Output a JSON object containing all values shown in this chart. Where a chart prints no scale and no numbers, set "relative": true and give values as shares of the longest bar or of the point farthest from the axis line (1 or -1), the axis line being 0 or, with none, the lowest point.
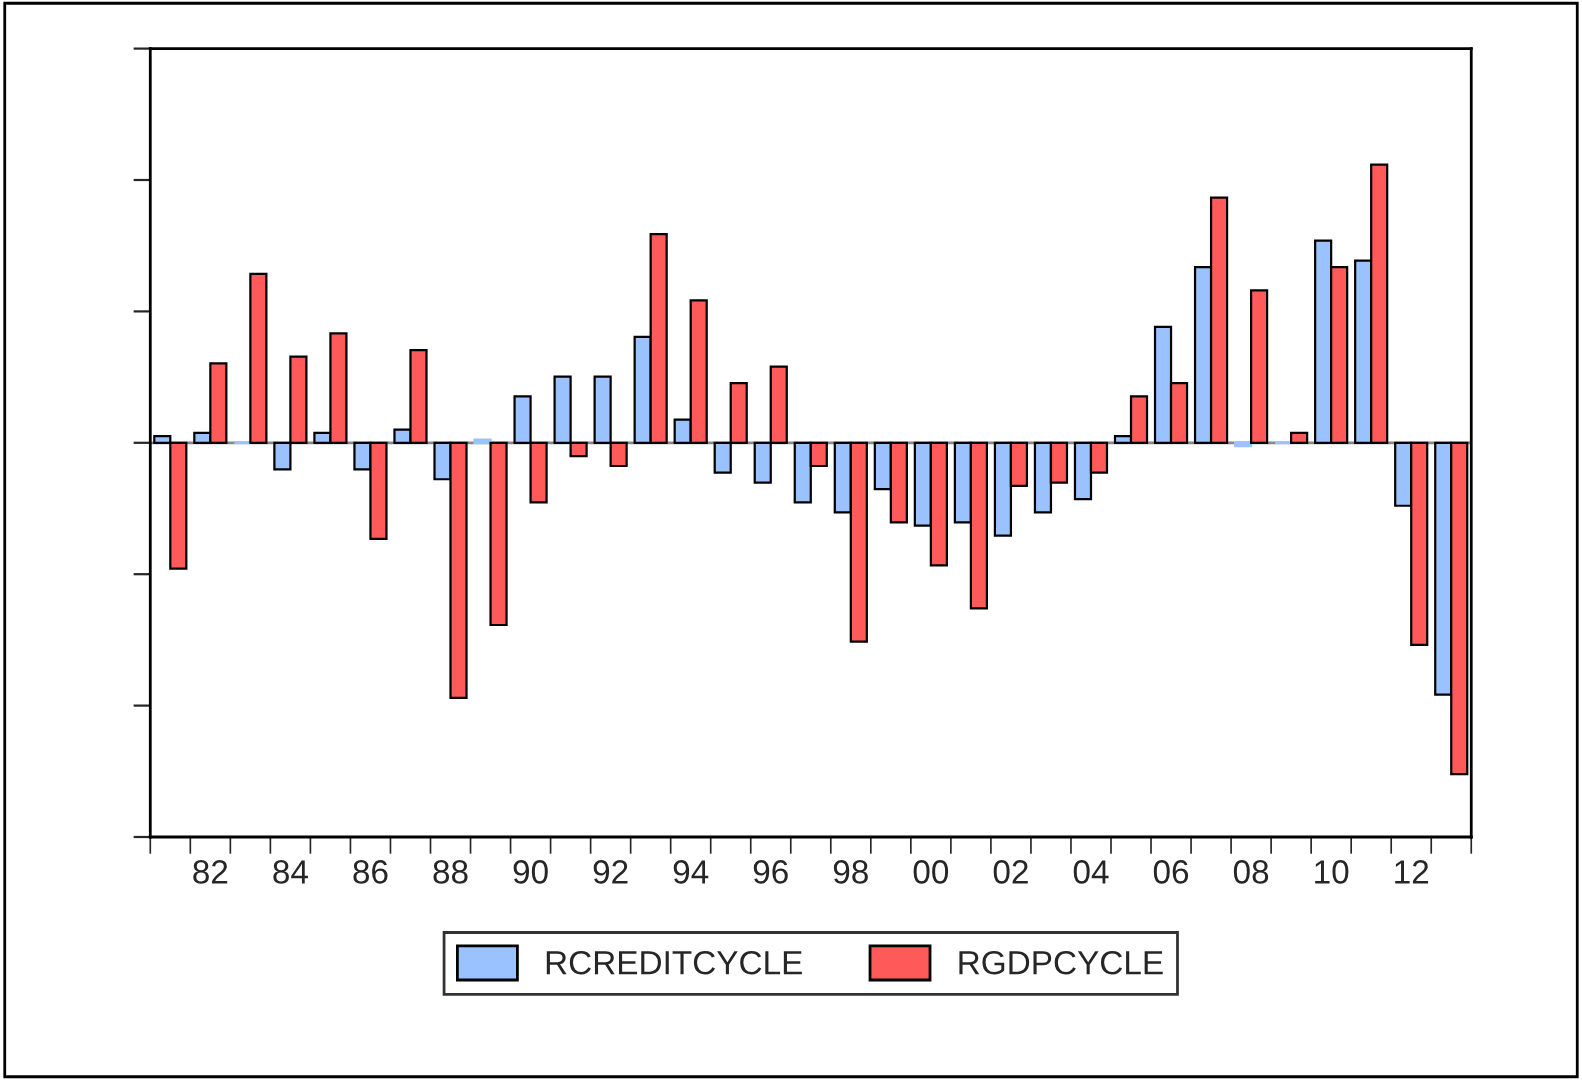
{
  "chart_data": {
    "type": "bar",
    "relative": true,
    "tick_labels": "x",
    "legend": "bottom",
    "grid": false,
    "categories": [
      null,
      "82",
      null,
      "84",
      null,
      "86",
      null,
      "88",
      null,
      "90",
      null,
      "92",
      null,
      "94",
      null,
      "96",
      null,
      "98",
      null,
      "00",
      null,
      "02",
      null,
      "04",
      null,
      "06",
      null,
      "08",
      null,
      "10",
      null,
      "12",
      null
    ],
    "series": [
      {
        "name": "RCREDITCYCLE",
        "color": "#99c2ff",
        "values": [
          0.02,
          0.03,
          0.0,
          -0.08,
          0.03,
          -0.08,
          0.04,
          -0.11,
          0.01,
          0.14,
          0.2,
          0.2,
          0.32,
          0.07,
          -0.09,
          -0.12,
          -0.18,
          -0.21,
          -0.14,
          -0.25,
          -0.24,
          -0.28,
          -0.21,
          -0.17,
          0.02,
          0.35,
          0.53,
          -0.01,
          -0.0,
          0.61,
          0.55,
          -0.19,
          -0.76
        ]
      },
      {
        "name": "RGDPCYCLE",
        "color": "#ff5a5a",
        "values": [
          -0.38,
          0.24,
          0.51,
          0.26,
          0.33,
          -0.29,
          0.28,
          -0.77,
          -0.55,
          -0.18,
          -0.04,
          -0.07,
          0.63,
          0.43,
          0.18,
          0.23,
          -0.07,
          -0.6,
          -0.24,
          -0.37,
          -0.5,
          -0.13,
          -0.12,
          -0.09,
          0.14,
          0.18,
          0.74,
          0.46,
          0.03,
          0.53,
          0.84,
          -0.61,
          -1
        ]
      }
    ]
  }
}
